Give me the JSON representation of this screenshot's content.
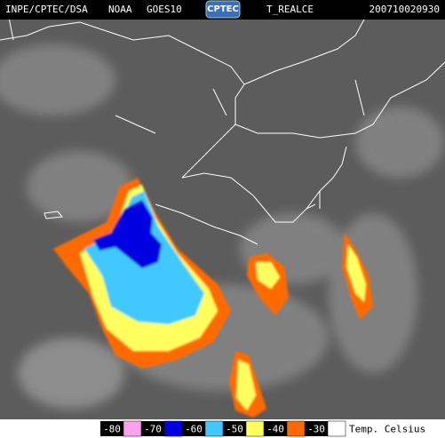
{
  "header": {
    "agency": "INPE/CPTEC/DSA",
    "satellite_owner": "NOAA",
    "satellite": "GOES10",
    "logo": "CPTEC",
    "product": "T_REALCE",
    "timestamp": "200710020930"
  },
  "legend": {
    "title": "Temp. Celsius",
    "items": [
      {
        "value": -80,
        "color": "#ffa0f0"
      },
      {
        "value": -70,
        "color": "#0000e0"
      },
      {
        "value": -60,
        "color": "#40c8ff"
      },
      {
        "value": -50,
        "color": "#ffff60"
      },
      {
        "value": -40,
        "color": "#ff6a00"
      },
      {
        "value": -30,
        "color": "#ffffff"
      }
    ]
  }
}
